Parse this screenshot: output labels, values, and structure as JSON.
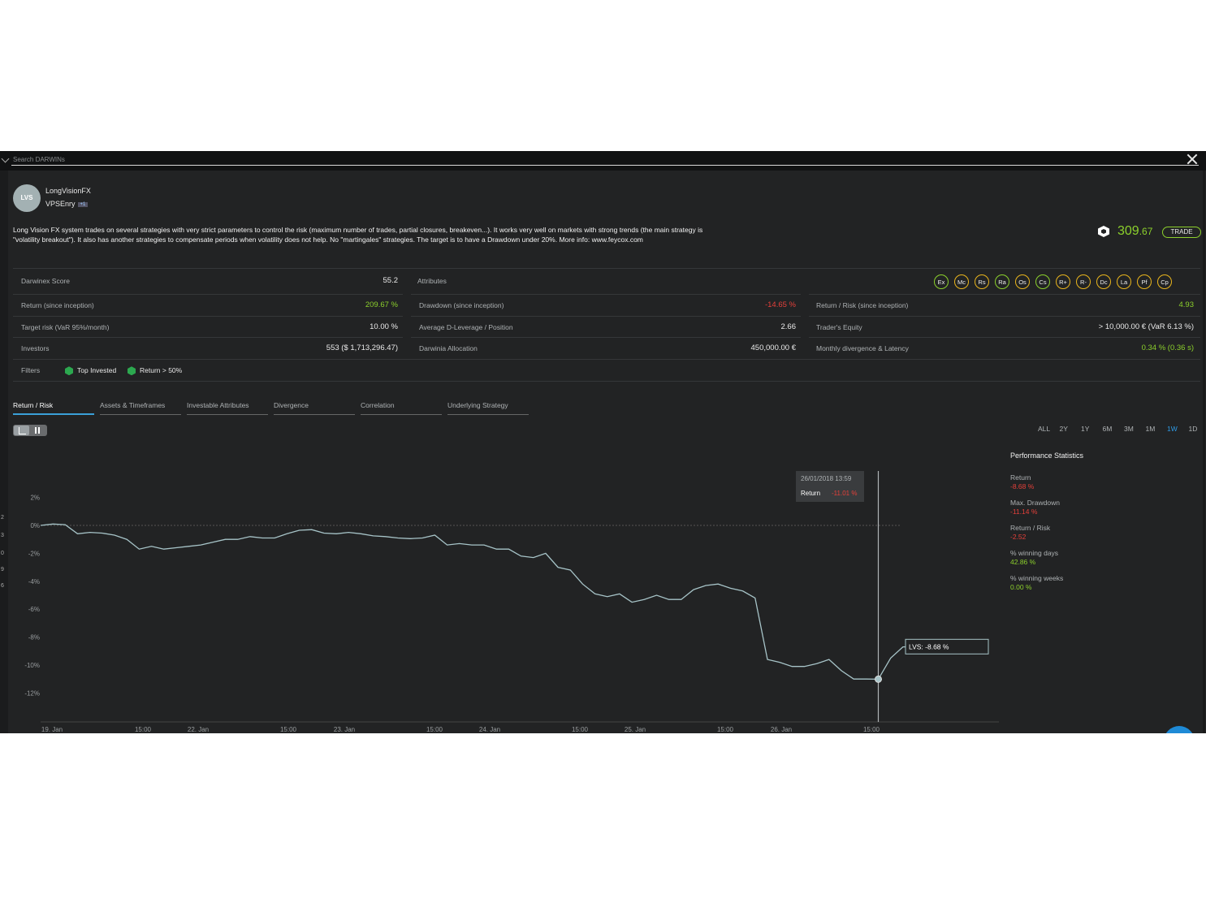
{
  "search": {
    "placeholder": "Search DARWINs"
  },
  "header": {
    "avatar_text": "LVS",
    "name": "LongVisionFX",
    "sub": "VPSEnry",
    "badge": "+1",
    "description": "Long Vision FX system trades on several strategies with very strict parameters to control the risk (maximum number of trades, partial closures, breakeven...). It works very well on markets with strong trends (the main strategy is \"volatility breakout\"). It also has another strategies to compensate periods when volatility does not help. No \"martingales\" strategies. The target is to have a Drawdown under 20%. More info: www.feycox.com",
    "price_int": "309",
    "price_dec": ".67",
    "trade_label": "TRADE"
  },
  "stats": {
    "score_label": "Darwinex Score",
    "score_value": "55.2",
    "attributes_label": "Attributes",
    "return_label": "Return (since inception)",
    "return_value": "209.67 %",
    "drawdown_label": "Drawdown (since inception)",
    "drawdown_value": "-14.65 %",
    "rr_label": "Return / Risk (since inception)",
    "rr_value": "4.93",
    "target_label": "Target risk (VaR 95%/month)",
    "target_value": "10.00 %",
    "leverage_label": "Average D-Leverage / Position",
    "leverage_value": "2.66",
    "equity_label": "Trader's Equity",
    "equity_value": "> 10,000.00 € (VaR 6.13 %)",
    "investors_label": "Investors",
    "investors_value": "553 ($ 1,713,296.47)",
    "allocation_label": "Darwinia Allocation",
    "allocation_value": "450,000.00 €",
    "divergence_label": "Monthly divergence & Latency",
    "divergence_value": "0.34 % (0.36 s)",
    "filters_label": "Filters",
    "filter1": "Top Invested",
    "filter2": "Return > 50%"
  },
  "attributes": [
    "Ex",
    "Mc",
    "Rs",
    "Ra",
    "Os",
    "Cs",
    "R+",
    "R-",
    "Dc",
    "La",
    "Pf",
    "Cp"
  ],
  "tabs": [
    "Return / Risk",
    "Assets & Timeframes",
    "Investable Attributes",
    "Divergence",
    "Correlation",
    "Underlying Strategy"
  ],
  "ranges": [
    "ALL",
    "2Y",
    "1Y",
    "6M",
    "3M",
    "1M",
    "1W",
    "1D"
  ],
  "performance": {
    "title": "Performance Statistics",
    "items": [
      {
        "label": "Return",
        "value": "-8.68 %",
        "color": "red"
      },
      {
        "label": "Max. Drawdown",
        "value": "-11.14 %",
        "color": "red"
      },
      {
        "label": "Return / Risk",
        "value": "-2.52",
        "color": "red"
      },
      {
        "label": "% winning days",
        "value": "42.86 %",
        "color": "green"
      },
      {
        "label": "% winning weeks",
        "value": "0.00 %",
        "color": "green"
      }
    ]
  },
  "tooltip": {
    "date": "26/01/2018 13:59",
    "label": "Return",
    "value": "-11.01 %"
  },
  "series_label": "LVS: -8.68 %",
  "left_edge_chars": [
    "2",
    "3",
    "0",
    "9",
    "6"
  ],
  "chart_data": {
    "type": "line",
    "y_ticks": [
      "2%",
      "0%",
      "-2%",
      "-4%",
      "-6%",
      "-8%",
      "-10%",
      "-12%"
    ],
    "x_ticks": [
      "19. Jan",
      "15:00",
      "22. Jan",
      "15:00",
      "23. Jan",
      "15:00",
      "24. Jan",
      "15:00",
      "25. Jan",
      "15:00",
      "26. Jan",
      "15:00"
    ],
    "ylim": [
      -14,
      2.5
    ],
    "series": [
      {
        "values": [
          0.0,
          0.1,
          0.05,
          -0.6,
          -0.5,
          -0.55,
          -0.7,
          -1.0,
          -1.7,
          -1.5,
          -1.7,
          -1.6,
          -1.5,
          -1.4,
          -1.2,
          -1.0,
          -1.0,
          -0.8,
          -0.9,
          -0.9,
          -0.6,
          -0.35,
          -0.3,
          -0.55,
          -0.6,
          -0.5,
          -0.6,
          -0.75,
          -0.8,
          -0.9,
          -0.95,
          -0.9,
          -0.7,
          -1.4,
          -1.3,
          -1.4,
          -1.4,
          -1.7,
          -1.7,
          -2.2,
          -2.3,
          -2.0,
          -3.0,
          -3.2,
          -4.2,
          -4.9,
          -5.1,
          -4.9,
          -5.5,
          -5.3,
          -5.0,
          -5.3,
          -5.3,
          -4.6,
          -4.3,
          -4.2,
          -4.5,
          -4.7,
          -5.2,
          -9.6,
          -9.8,
          -10.1,
          -10.1,
          -9.9,
          -9.6,
          -10.4,
          -11.0,
          -11.0,
          -11.01,
          -9.5,
          -8.7,
          -8.68
        ]
      }
    ]
  }
}
